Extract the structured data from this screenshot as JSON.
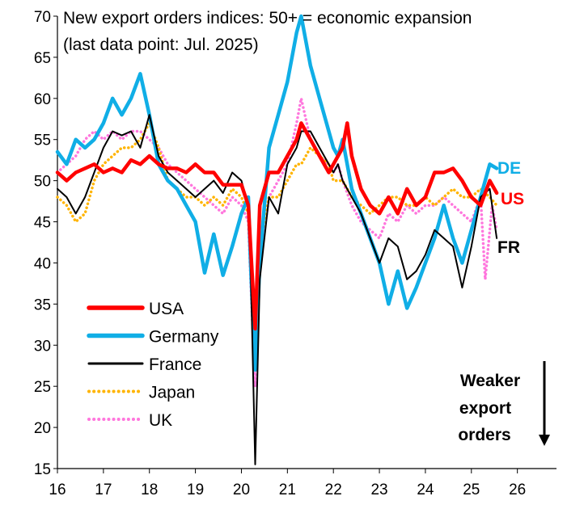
{
  "chart_data": {
    "type": "line",
    "title": "New export orders indices: 50+ = economic expansion",
    "subtitle": "(last data point: Jul. 2025)",
    "xlabel": "",
    "ylabel": "",
    "xlim": [
      16,
      26.85
    ],
    "ylim": [
      15,
      70
    ],
    "yticks": [
      15,
      20,
      25,
      30,
      35,
      40,
      45,
      50,
      55,
      60,
      65,
      70
    ],
    "xticks": [
      16,
      17,
      18,
      19,
      20,
      21,
      22,
      23,
      24,
      25,
      26
    ],
    "grid": false,
    "legend_position": "bottom-left",
    "series": [
      {
        "name": "USA",
        "color": "#ff0000",
        "style": "solid",
        "end_label": "US",
        "points": [
          [
            16.0,
            51
          ],
          [
            16.2,
            50
          ],
          [
            16.4,
            51
          ],
          [
            16.6,
            51.5
          ],
          [
            16.8,
            52
          ],
          [
            17.0,
            51
          ],
          [
            17.2,
            51.5
          ],
          [
            17.4,
            51
          ],
          [
            17.6,
            52.5
          ],
          [
            17.8,
            52
          ],
          [
            18.0,
            53
          ],
          [
            18.2,
            52
          ],
          [
            18.4,
            51.5
          ],
          [
            18.6,
            51.5
          ],
          [
            18.8,
            51
          ],
          [
            19.0,
            52
          ],
          [
            19.2,
            51
          ],
          [
            19.4,
            51
          ],
          [
            19.6,
            49.5
          ],
          [
            19.8,
            49.5
          ],
          [
            20.0,
            49.5
          ],
          [
            20.15,
            47
          ],
          [
            20.2,
            42
          ],
          [
            20.3,
            32
          ],
          [
            20.4,
            47
          ],
          [
            20.6,
            51
          ],
          [
            20.8,
            51
          ],
          [
            21.0,
            53
          ],
          [
            21.2,
            55
          ],
          [
            21.3,
            57
          ],
          [
            21.5,
            55
          ],
          [
            21.7,
            53
          ],
          [
            21.9,
            51
          ],
          [
            22.0,
            52
          ],
          [
            22.1,
            53
          ],
          [
            22.2,
            54
          ],
          [
            22.3,
            57
          ],
          [
            22.4,
            53
          ],
          [
            22.6,
            49
          ],
          [
            22.8,
            47
          ],
          [
            23.0,
            46
          ],
          [
            23.2,
            48
          ],
          [
            23.4,
            46
          ],
          [
            23.6,
            49
          ],
          [
            23.8,
            47
          ],
          [
            24.0,
            48
          ],
          [
            24.2,
            51
          ],
          [
            24.4,
            51
          ],
          [
            24.6,
            51.5
          ],
          [
            24.8,
            50
          ],
          [
            25.0,
            48
          ],
          [
            25.2,
            47
          ],
          [
            25.4,
            50
          ],
          [
            25.55,
            48.5
          ]
        ]
      },
      {
        "name": "Germany",
        "color": "#10aee6",
        "style": "solid",
        "end_label": "DE",
        "points": [
          [
            16.0,
            53.5
          ],
          [
            16.2,
            52
          ],
          [
            16.4,
            55
          ],
          [
            16.6,
            54
          ],
          [
            16.8,
            55
          ],
          [
            17.0,
            57
          ],
          [
            17.2,
            60
          ],
          [
            17.4,
            58
          ],
          [
            17.6,
            60
          ],
          [
            17.8,
            63
          ],
          [
            18.0,
            58
          ],
          [
            18.2,
            52
          ],
          [
            18.4,
            50
          ],
          [
            18.6,
            49
          ],
          [
            18.8,
            47
          ],
          [
            19.0,
            45
          ],
          [
            19.2,
            38.8
          ],
          [
            19.4,
            43.5
          ],
          [
            19.6,
            38.5
          ],
          [
            19.8,
            42
          ],
          [
            20.0,
            46
          ],
          [
            20.15,
            48
          ],
          [
            20.2,
            40
          ],
          [
            20.3,
            27
          ],
          [
            20.4,
            40
          ],
          [
            20.6,
            54
          ],
          [
            20.8,
            58
          ],
          [
            21.0,
            62
          ],
          [
            21.2,
            68
          ],
          [
            21.3,
            70
          ],
          [
            21.5,
            64
          ],
          [
            21.7,
            60
          ],
          [
            21.9,
            56
          ],
          [
            22.0,
            54
          ],
          [
            22.1,
            53
          ],
          [
            22.2,
            55
          ],
          [
            22.4,
            49
          ],
          [
            22.6,
            46
          ],
          [
            22.8,
            43
          ],
          [
            23.0,
            40
          ],
          [
            23.2,
            35
          ],
          [
            23.4,
            39
          ],
          [
            23.6,
            34.5
          ],
          [
            23.8,
            37
          ],
          [
            24.0,
            40
          ],
          [
            24.2,
            43
          ],
          [
            24.4,
            47
          ],
          [
            24.6,
            43
          ],
          [
            24.8,
            40
          ],
          [
            25.0,
            44
          ],
          [
            25.2,
            48
          ],
          [
            25.4,
            52
          ],
          [
            25.55,
            51.5
          ]
        ]
      },
      {
        "name": "France",
        "color": "#000000",
        "style": "solid",
        "end_label": "FR",
        "points": [
          [
            16.0,
            49
          ],
          [
            16.2,
            48
          ],
          [
            16.4,
            46
          ],
          [
            16.6,
            48
          ],
          [
            16.8,
            51
          ],
          [
            17.0,
            54
          ],
          [
            17.2,
            56
          ],
          [
            17.4,
            55.5
          ],
          [
            17.6,
            56
          ],
          [
            17.8,
            54
          ],
          [
            18.0,
            58
          ],
          [
            18.2,
            53
          ],
          [
            18.4,
            51
          ],
          [
            18.6,
            50
          ],
          [
            18.8,
            49
          ],
          [
            19.0,
            48
          ],
          [
            19.2,
            49
          ],
          [
            19.4,
            50
          ],
          [
            19.6,
            48.5
          ],
          [
            19.8,
            51
          ],
          [
            20.0,
            50
          ],
          [
            20.15,
            47
          ],
          [
            20.2,
            40
          ],
          [
            20.3,
            15.5
          ],
          [
            20.4,
            38
          ],
          [
            20.6,
            48
          ],
          [
            20.8,
            46
          ],
          [
            21.0,
            52
          ],
          [
            21.2,
            54
          ],
          [
            21.3,
            56
          ],
          [
            21.5,
            56
          ],
          [
            21.7,
            54
          ],
          [
            21.9,
            52
          ],
          [
            22.0,
            51
          ],
          [
            22.1,
            52
          ],
          [
            22.2,
            50
          ],
          [
            22.4,
            48
          ],
          [
            22.6,
            46
          ],
          [
            22.8,
            43
          ],
          [
            23.0,
            40
          ],
          [
            23.2,
            43
          ],
          [
            23.4,
            42
          ],
          [
            23.6,
            38
          ],
          [
            23.8,
            39
          ],
          [
            24.0,
            41
          ],
          [
            24.2,
            44
          ],
          [
            24.4,
            43
          ],
          [
            24.6,
            42
          ],
          [
            24.8,
            37
          ],
          [
            25.0,
            42
          ],
          [
            25.2,
            48
          ],
          [
            25.4,
            49
          ],
          [
            25.55,
            43
          ]
        ]
      },
      {
        "name": "Japan",
        "color": "#ffb400",
        "style": "dotted",
        "points": [
          [
            16.0,
            48
          ],
          [
            16.2,
            47
          ],
          [
            16.4,
            45
          ],
          [
            16.6,
            46
          ],
          [
            16.8,
            50
          ],
          [
            17.0,
            52
          ],
          [
            17.2,
            53
          ],
          [
            17.4,
            54
          ],
          [
            17.6,
            54
          ],
          [
            17.8,
            55
          ],
          [
            18.0,
            57
          ],
          [
            18.2,
            54
          ],
          [
            18.4,
            50
          ],
          [
            18.6,
            49
          ],
          [
            18.8,
            48
          ],
          [
            19.0,
            48
          ],
          [
            19.2,
            47
          ],
          [
            19.4,
            48
          ],
          [
            19.6,
            47
          ],
          [
            19.8,
            49
          ],
          [
            20.0,
            48
          ],
          [
            20.15,
            46
          ],
          [
            20.2,
            40
          ],
          [
            20.3,
            30
          ],
          [
            20.4,
            42
          ],
          [
            20.6,
            48
          ],
          [
            20.8,
            48
          ],
          [
            21.0,
            50
          ],
          [
            21.2,
            52
          ],
          [
            21.3,
            52
          ],
          [
            21.5,
            54
          ],
          [
            21.7,
            53
          ],
          [
            21.9,
            52
          ],
          [
            22.0,
            50
          ],
          [
            22.1,
            50
          ],
          [
            22.2,
            50
          ],
          [
            22.4,
            48
          ],
          [
            22.6,
            47
          ],
          [
            22.8,
            46
          ],
          [
            23.0,
            47
          ],
          [
            23.2,
            48
          ],
          [
            23.4,
            48
          ],
          [
            23.6,
            47
          ],
          [
            23.8,
            47
          ],
          [
            24.0,
            48
          ],
          [
            24.2,
            47
          ],
          [
            24.4,
            48
          ],
          [
            24.6,
            49
          ],
          [
            24.8,
            48
          ],
          [
            25.0,
            48
          ],
          [
            25.2,
            49
          ],
          [
            25.4,
            48
          ],
          [
            25.55,
            47
          ]
        ]
      },
      {
        "name": "UK",
        "color": "#ff77dd",
        "style": "dotted",
        "points": [
          [
            16.0,
            51
          ],
          [
            16.2,
            52
          ],
          [
            16.4,
            53
          ],
          [
            16.6,
            55
          ],
          [
            16.8,
            56
          ],
          [
            17.0,
            55
          ],
          [
            17.2,
            56
          ],
          [
            17.4,
            55
          ],
          [
            17.6,
            56
          ],
          [
            17.8,
            56
          ],
          [
            18.0,
            55
          ],
          [
            18.2,
            54
          ],
          [
            18.4,
            52
          ],
          [
            18.6,
            51
          ],
          [
            18.8,
            50
          ],
          [
            19.0,
            49
          ],
          [
            19.2,
            48
          ],
          [
            19.4,
            47
          ],
          [
            19.6,
            46
          ],
          [
            19.8,
            48
          ],
          [
            20.0,
            47
          ],
          [
            20.15,
            45
          ],
          [
            20.2,
            38
          ],
          [
            20.3,
            25
          ],
          [
            20.4,
            40
          ],
          [
            20.6,
            48
          ],
          [
            20.8,
            50
          ],
          [
            21.0,
            52
          ],
          [
            21.2,
            57
          ],
          [
            21.3,
            60
          ],
          [
            21.5,
            55
          ],
          [
            21.7,
            53
          ],
          [
            21.9,
            52
          ],
          [
            22.0,
            51
          ],
          [
            22.1,
            52
          ],
          [
            22.2,
            50
          ],
          [
            22.4,
            47
          ],
          [
            22.6,
            45
          ],
          [
            22.8,
            44
          ],
          [
            23.0,
            43
          ],
          [
            23.2,
            46
          ],
          [
            23.4,
            45
          ],
          [
            23.6,
            47
          ],
          [
            23.8,
            46
          ],
          [
            24.0,
            47
          ],
          [
            24.2,
            47
          ],
          [
            24.4,
            48
          ],
          [
            24.6,
            47
          ],
          [
            24.8,
            46
          ],
          [
            25.0,
            45
          ],
          [
            25.2,
            48
          ],
          [
            25.3,
            38
          ],
          [
            25.45,
            47
          ],
          [
            25.55,
            44
          ]
        ]
      }
    ],
    "annotation": {
      "lines": [
        "Weaker",
        "export",
        "orders"
      ]
    }
  }
}
